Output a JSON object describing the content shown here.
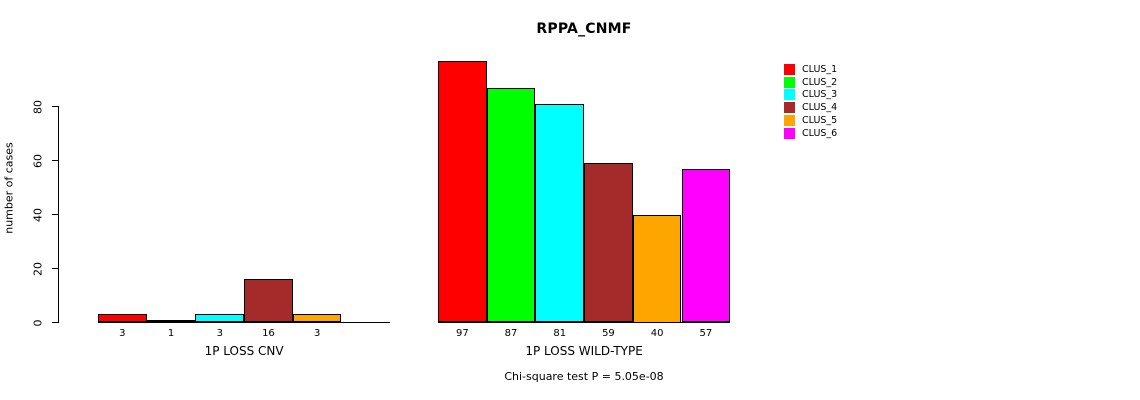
{
  "title": "RPPA_CNMF",
  "ylabel": "number of cases",
  "footer": "Chi-square test P = 5.05e-08",
  "legend": [
    {
      "label": "CLUS_1",
      "color": "#FF0000"
    },
    {
      "label": "CLUS_2",
      "color": "#00FF00"
    },
    {
      "label": "CLUS_3",
      "color": "#00FFFF"
    },
    {
      "label": "CLUS_4",
      "color": "#A52A2A"
    },
    {
      "label": "CLUS_5",
      "color": "#FFA500"
    },
    {
      "label": "CLUS_6",
      "color": "#FF00FF"
    }
  ],
  "chart_data": {
    "type": "bar",
    "title": "RPPA_CNMF",
    "xlabel": "",
    "ylabel": "number of cases",
    "yticks": [
      0,
      20,
      40,
      60,
      80
    ],
    "ylim": [
      0,
      80
    ],
    "grid": false,
    "legend_position": "right",
    "bar_border_color": "#000000",
    "categories": [
      "1P LOSS CNV",
      "1P LOSS WILD-TYPE"
    ],
    "series": [
      {
        "name": "CLUS_1",
        "color": "#FF0000",
        "values": [
          3,
          97
        ]
      },
      {
        "name": "CLUS_2",
        "color": "#00FF00",
        "values": [
          1,
          87
        ]
      },
      {
        "name": "CLUS_3",
        "color": "#00FFFF",
        "values": [
          3,
          81
        ]
      },
      {
        "name": "CLUS_4",
        "color": "#A52A2A",
        "values": [
          16,
          59
        ]
      },
      {
        "name": "CLUS_5",
        "color": "#FFA500",
        "values": [
          3,
          40
        ]
      },
      {
        "name": "CLUS_6",
        "color": "#FF00FF",
        "values": [
          0,
          57
        ]
      }
    ],
    "bar_labels": [
      [
        "3",
        "1",
        "3",
        "16",
        "3",
        ""
      ],
      [
        "97",
        "87",
        "81",
        "59",
        "40",
        "57"
      ]
    ],
    "annotation": "Chi-square test P = 5.05e-08"
  }
}
